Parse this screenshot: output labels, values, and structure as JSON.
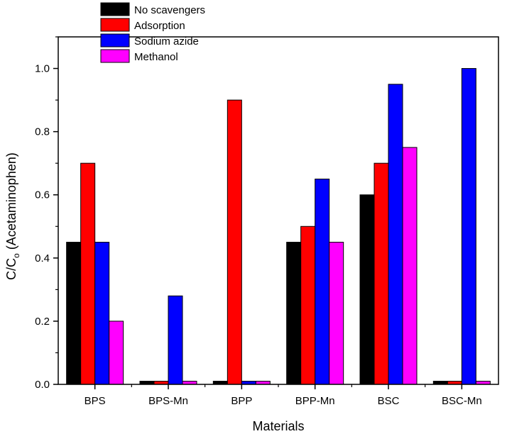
{
  "chart_data": {
    "type": "bar",
    "xlabel": "Materials",
    "ylabel": "C/C",
    "ylabel_subscript": "o",
    "ylabel_suffix": " (Acetaminophen)",
    "ylim": [
      0,
      1.1
    ],
    "yticks": [
      "0.0",
      "0.2",
      "0.4",
      "0.6",
      "0.8",
      "1.0"
    ],
    "legend_position": "top-left",
    "categories": [
      "BPS",
      "BPS-Mn",
      "BPP",
      "BPP-Mn",
      "BSC",
      "BSC-Mn"
    ],
    "series": [
      {
        "name": "No scavengers",
        "color": "#000000",
        "values": [
          0.45,
          0.01,
          0.01,
          0.45,
          0.6,
          0.01
        ]
      },
      {
        "name": "Adsorption",
        "color": "#ff0000",
        "values": [
          0.7,
          0.01,
          0.9,
          0.5,
          0.7,
          0.01
        ]
      },
      {
        "name": "Sodium azide",
        "color": "#0000ff",
        "values": [
          0.45,
          0.28,
          0.01,
          0.65,
          0.95,
          1.0
        ]
      },
      {
        "name": "Methanol",
        "color": "#ff00ff",
        "values": [
          0.2,
          0.01,
          0.01,
          0.45,
          0.75,
          0.01
        ]
      }
    ]
  }
}
